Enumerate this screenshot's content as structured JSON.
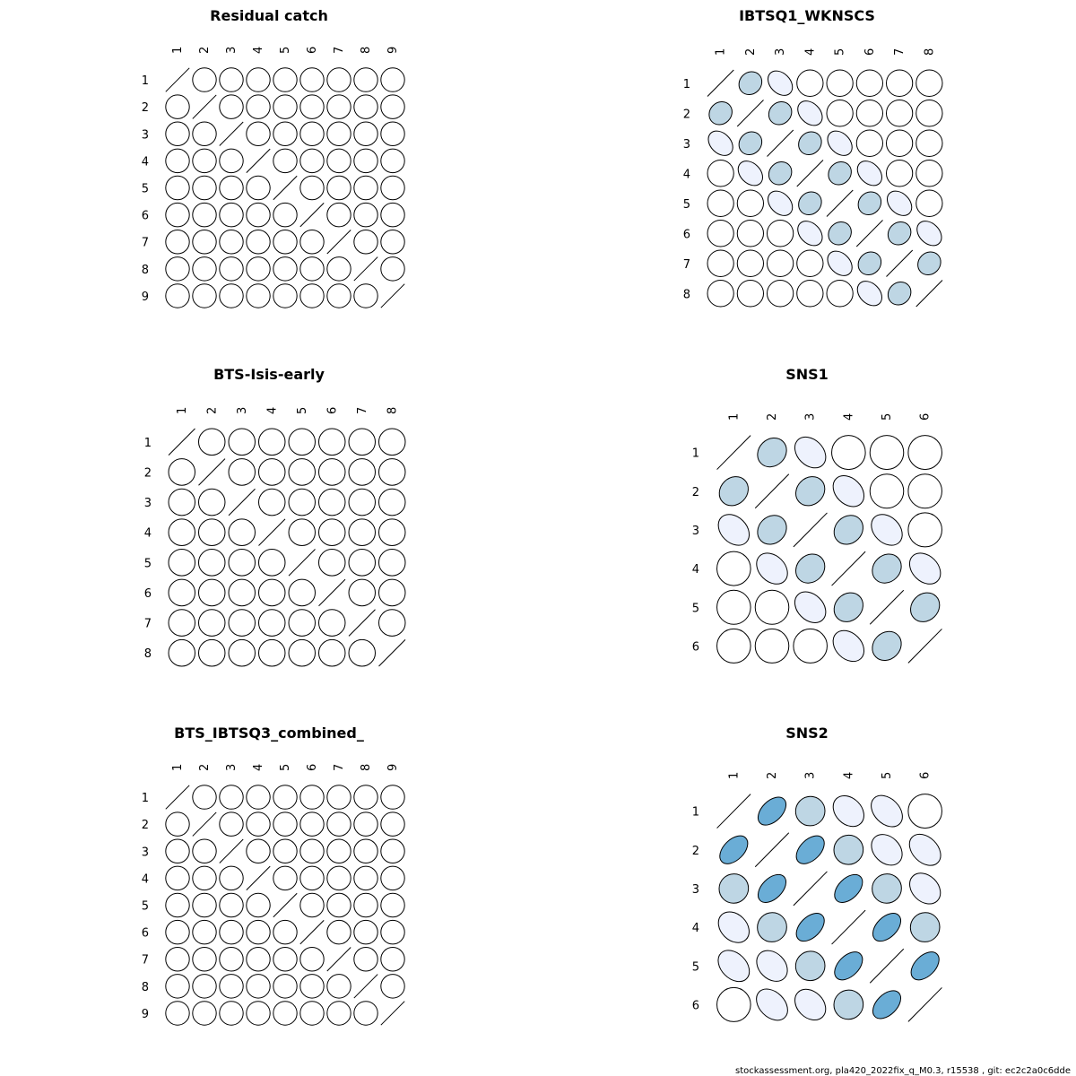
{
  "footer": {
    "text": "stockassessment.org, pla420_2022fix_q_M0.3, r15538 , git: ec2c2a0c6dde"
  },
  "colors": {
    "weak": "#eef2fd",
    "medium": "#bed6e4",
    "strong": "#6aadd6",
    "outline": "#000000"
  },
  "chart_data": [
    {
      "type": "correlation-matrix",
      "title": "Residual catch",
      "labels": [
        "1",
        "2",
        "3",
        "4",
        "5",
        "6",
        "7",
        "8",
        "9"
      ],
      "uniform_correlation": 0
    },
    {
      "type": "correlation-matrix",
      "title": "IBTSQ1_WKNSCS",
      "labels": [
        "1",
        "2",
        "3",
        "4",
        "5",
        "6",
        "7",
        "8"
      ],
      "band_correlations": {
        "1": 0.45,
        "2": 0.1
      },
      "default_correlation": 0
    },
    {
      "type": "correlation-matrix",
      "title": "BTS-Isis-early",
      "labels": [
        "1",
        "2",
        "3",
        "4",
        "5",
        "6",
        "7",
        "8"
      ],
      "uniform_correlation": 0
    },
    {
      "type": "correlation-matrix",
      "title": "SNS1",
      "labels": [
        "1",
        "2",
        "3",
        "4",
        "5",
        "6"
      ],
      "band_correlations": {
        "1": 0.45,
        "2": 0.1
      },
      "default_correlation": 0
    },
    {
      "type": "correlation-matrix",
      "title": "BTS_IBTSQ3_combined_",
      "labels": [
        "1",
        "2",
        "3",
        "4",
        "5",
        "6",
        "7",
        "8",
        "9"
      ],
      "uniform_correlation": 0
    },
    {
      "type": "correlation-matrix",
      "title": "SNS2",
      "labels": [
        "1",
        "2",
        "3",
        "4",
        "5",
        "6"
      ],
      "band_correlations": {
        "1": 0.7,
        "2": 0.35,
        "3": 0.12,
        "4": 0.06,
        "5": 0
      },
      "default_correlation": 0
    }
  ]
}
